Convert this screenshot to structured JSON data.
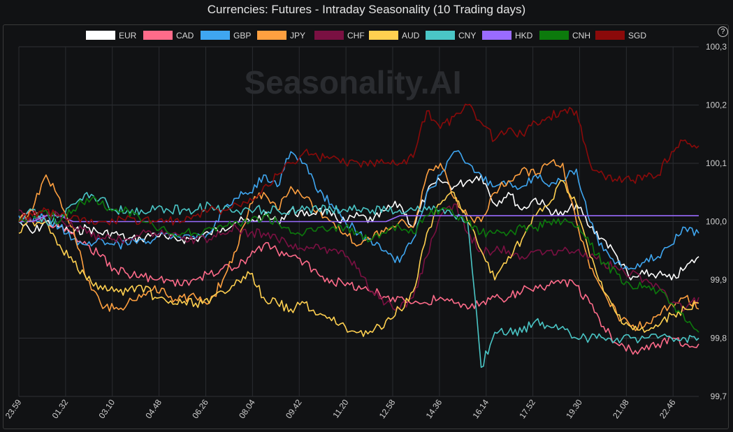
{
  "title": "Currencies: Futures - Intraday Seasonality (10 Trading days)",
  "help_label": "?",
  "watermark": "Seasonality.AI",
  "chart_data": {
    "type": "line",
    "title": "Currencies: Futures - Intraday Seasonality (10 Trading days)",
    "x_ticks": [
      "23.59",
      "01.32",
      "03.10",
      "04.48",
      "06.26",
      "08.04",
      "09.42",
      "11.20",
      "12.58",
      "14.36",
      "16.14",
      "17.52",
      "19.30",
      "21.08",
      "22.46"
    ],
    "y_ticks": [
      99.7,
      99.8,
      99.9,
      100.0,
      100.1,
      100.2,
      100.3
    ],
    "y_tick_labels": [
      "99,7",
      "99,8",
      "99,9",
      "100,0",
      "100,1",
      "100,2",
      "100,3"
    ],
    "ylim": [
      99.7,
      100.3
    ],
    "grid": true,
    "legend_position": "top",
    "x": [
      0,
      2,
      4,
      6,
      8,
      10,
      12,
      14,
      16,
      18,
      20,
      22,
      24,
      26,
      28,
      30,
      32,
      34,
      36,
      38,
      40,
      42,
      44,
      46,
      48,
      50,
      52,
      54,
      56,
      58,
      60,
      62,
      64,
      66,
      68,
      70,
      72,
      74,
      76,
      78,
      80,
      82,
      84,
      86,
      88,
      90,
      92,
      94,
      96,
      98,
      100
    ],
    "series": [
      {
        "name": "EUR",
        "color": "#ffffff",
        "values": [
          100.0,
          99.98,
          100.0,
          99.99,
          99.98,
          99.99,
          99.98,
          99.98,
          99.97,
          99.97,
          99.98,
          99.97,
          99.97,
          99.97,
          99.98,
          99.99,
          100.0,
          100.0,
          100.01,
          100.0,
          100.02,
          100.01,
          100.02,
          100.01,
          100.0,
          100.01,
          100.0,
          100.02,
          100.03,
          99.99,
          100.05,
          100.07,
          100.06,
          100.07,
          100.08,
          100.03,
          100.05,
          100.02,
          100.04,
          100.02,
          100.01,
          100.03,
          99.99,
          99.97,
          99.94,
          99.9,
          99.91,
          99.91,
          99.9,
          99.92,
          99.94
        ]
      },
      {
        "name": "CAD",
        "color": "#ff6b8a",
        "values": [
          100.0,
          100.02,
          100.0,
          99.99,
          99.98,
          99.96,
          99.94,
          99.92,
          99.91,
          99.91,
          99.9,
          99.9,
          99.89,
          99.9,
          99.91,
          99.92,
          99.92,
          99.94,
          99.96,
          99.95,
          99.94,
          99.93,
          99.91,
          99.9,
          99.89,
          99.89,
          99.88,
          99.87,
          99.87,
          99.86,
          99.86,
          99.87,
          99.86,
          99.85,
          99.86,
          99.87,
          99.87,
          99.88,
          99.89,
          99.89,
          99.9,
          99.89,
          99.86,
          99.82,
          99.79,
          99.78,
          99.78,
          99.79,
          99.8,
          99.79,
          99.79
        ]
      },
      {
        "name": "GBP",
        "color": "#3fa6f0",
        "values": [
          100.01,
          100.0,
          100.01,
          99.99,
          99.97,
          99.96,
          99.97,
          99.96,
          99.96,
          99.97,
          99.97,
          99.98,
          99.97,
          99.97,
          99.98,
          100.02,
          100.04,
          100.05,
          100.08,
          100.06,
          100.12,
          100.1,
          100.05,
          100.03,
          100.0,
          99.98,
          99.96,
          99.95,
          99.93,
          99.97,
          100.05,
          100.08,
          100.12,
          100.1,
          100.08,
          100.06,
          100.07,
          100.06,
          100.08,
          100.06,
          100.07,
          100.09,
          100.0,
          99.95,
          99.93,
          99.92,
          99.93,
          99.94,
          99.96,
          99.99,
          99.98
        ]
      },
      {
        "name": "JPY",
        "color": "#ffa040",
        "values": [
          100.0,
          100.02,
          100.08,
          100.04,
          99.99,
          99.9,
          99.86,
          99.85,
          99.86,
          99.87,
          99.89,
          99.87,
          99.87,
          99.87,
          99.86,
          99.9,
          99.95,
          100.03,
          100.05,
          100.02,
          100.06,
          100.04,
          100.02,
          100.0,
          99.98,
          99.96,
          99.97,
          99.99,
          100.0,
          99.99,
          100.08,
          100.1,
          100.04,
          100.01,
          100.0,
          100.05,
          100.07,
          100.09,
          100.08,
          100.1,
          100.1,
          100.0,
          99.92,
          99.88,
          99.84,
          99.82,
          99.82,
          99.84,
          99.86,
          99.87,
          99.85
        ]
      },
      {
        "name": "CHF",
        "color": "#7a1042",
        "values": [
          100.02,
          100.0,
          100.01,
          100.01,
          99.99,
          99.98,
          99.97,
          99.97,
          99.97,
          99.98,
          99.98,
          99.98,
          99.97,
          99.97,
          99.97,
          99.98,
          99.99,
          99.98,
          99.98,
          99.97,
          99.96,
          99.95,
          99.96,
          99.95,
          99.94,
          99.92,
          99.88,
          99.86,
          99.85,
          99.87,
          99.94,
          100.01,
          100.03,
          99.98,
          99.95,
          99.95,
          99.95,
          99.94,
          99.95,
          99.95,
          99.95,
          99.95,
          99.94,
          99.93,
          99.92,
          99.91,
          99.9,
          99.89,
          99.86,
          99.85,
          99.87
        ]
      },
      {
        "name": "AUD",
        "color": "#ffd050",
        "values": [
          99.98,
          100.0,
          100.0,
          99.96,
          99.93,
          99.9,
          99.89,
          99.88,
          99.88,
          99.89,
          99.87,
          99.86,
          99.86,
          99.86,
          99.86,
          99.88,
          99.9,
          99.91,
          99.87,
          99.86,
          99.85,
          99.86,
          99.84,
          99.83,
          99.82,
          99.81,
          99.81,
          99.83,
          99.85,
          99.88,
          99.98,
          100.03,
          100.05,
          100.0,
          99.95,
          99.9,
          99.94,
          99.97,
          100.01,
          100.03,
          100.07,
          100.03,
          99.94,
          99.88,
          99.84,
          99.82,
          99.81,
          99.82,
          99.84,
          99.85,
          99.86
        ]
      },
      {
        "name": "CNY",
        "color": "#4ac6c6",
        "values": [
          100.0,
          100.02,
          100.0,
          100.01,
          100.03,
          100.05,
          100.04,
          100.02,
          100.02,
          100.02,
          100.02,
          100.02,
          100.02,
          100.02,
          100.03,
          100.02,
          100.02,
          100.02,
          100.02,
          100.02,
          100.02,
          100.02,
          100.02,
          100.02,
          100.02,
          100.02,
          100.02,
          100.02,
          100.02,
          100.02,
          100.02,
          100.02,
          100.01,
          100.0,
          99.75,
          99.81,
          99.81,
          99.81,
          99.83,
          99.82,
          99.82,
          99.8,
          99.8,
          99.8,
          99.8,
          99.8,
          99.8,
          99.8,
          99.8,
          99.8,
          99.8
        ]
      },
      {
        "name": "HKD",
        "color": "#9a6bff",
        "values": [
          100.0,
          100.0,
          100.01,
          100.01,
          100.0,
          100.0,
          100.0,
          100.0,
          100.0,
          100.0,
          100.0,
          100.0,
          100.0,
          100.0,
          100.0,
          100.0,
          100.0,
          100.0,
          100.0,
          100.0,
          100.0,
          100.0,
          100.0,
          100.0,
          100.0,
          100.0,
          100.0,
          100.0,
          100.01,
          100.01,
          100.01,
          100.01,
          100.01,
          100.01,
          100.01,
          100.01,
          100.01,
          100.01,
          100.01,
          100.01,
          100.01,
          100.01,
          100.01,
          100.01,
          100.01,
          100.01,
          100.01,
          100.01,
          100.01,
          100.01,
          100.01
        ]
      },
      {
        "name": "CNH",
        "color": "#0c7a0c",
        "values": [
          100.0,
          100.01,
          100.02,
          100.0,
          100.02,
          100.04,
          100.03,
          100.02,
          100.02,
          100.0,
          99.99,
          99.98,
          99.98,
          99.98,
          99.99,
          99.99,
          100.0,
          100.0,
          100.01,
          100.0,
          99.98,
          99.98,
          99.99,
          99.99,
          99.99,
          99.98,
          99.97,
          99.98,
          99.99,
          99.98,
          100.01,
          100.02,
          100.01,
          100.0,
          99.98,
          99.98,
          99.98,
          99.99,
          99.99,
          100.0,
          100.0,
          99.99,
          99.96,
          99.93,
          99.91,
          99.89,
          99.89,
          99.88,
          99.86,
          99.83,
          99.81
        ]
      },
      {
        "name": "SGD",
        "color": "#8b0a0a",
        "values": [
          100.0,
          100.01,
          100.02,
          100.01,
          100.01,
          100.0,
          100.0,
          100.0,
          100.01,
          100.0,
          100.0,
          100.0,
          100.0,
          100.01,
          100.02,
          100.02,
          100.03,
          100.04,
          100.06,
          100.08,
          100.1,
          100.12,
          100.11,
          100.11,
          100.1,
          100.1,
          100.1,
          100.1,
          100.1,
          100.11,
          100.19,
          100.16,
          100.18,
          100.2,
          100.17,
          100.14,
          100.16,
          100.15,
          100.17,
          100.18,
          100.19,
          100.19,
          100.1,
          100.08,
          100.07,
          100.07,
          100.08,
          100.08,
          100.12,
          100.14,
          100.13
        ]
      }
    ]
  }
}
